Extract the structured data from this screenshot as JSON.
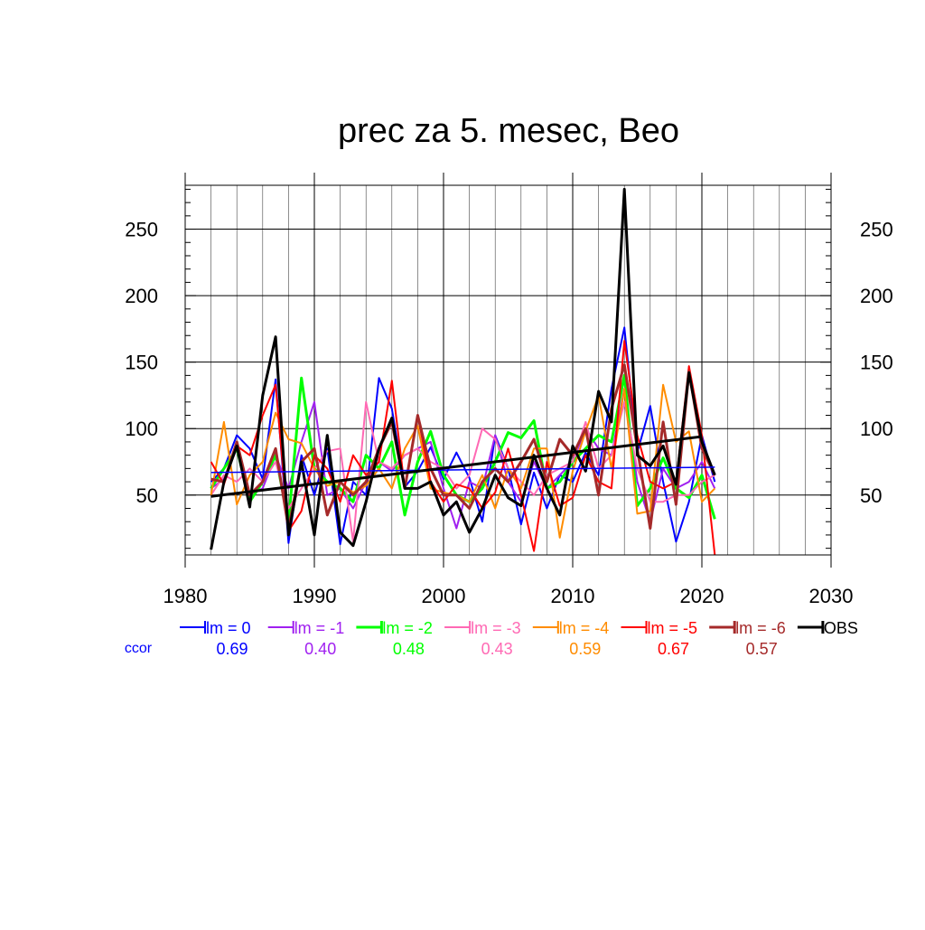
{
  "chart_data": {
    "type": "line",
    "title": "prec za 5. mesec, Beo",
    "xlabel": "",
    "ylabel": "",
    "xlim": [
      1980,
      2030
    ],
    "ylim": [
      5,
      283
    ],
    "x_ticks": [
      1980,
      1990,
      2000,
      2010,
      2020,
      2030
    ],
    "y_ticks": [
      50,
      100,
      150,
      200,
      250
    ],
    "x_tick_labels": [
      "1980",
      "1990",
      "2000",
      "2010",
      "2020",
      "2030"
    ],
    "y_tick_labels": [
      "50",
      "100",
      "150",
      "200",
      "250"
    ],
    "grid": true,
    "legend_position": "bottom",
    "ccor_label": "ccor",
    "x": [
      1982,
      1983,
      1984,
      1985,
      1986,
      1987,
      1988,
      1989,
      1990,
      1991,
      1992,
      1993,
      1994,
      1995,
      1996,
      1997,
      1998,
      1999,
      2000,
      2001,
      2002,
      2003,
      2004,
      2005,
      2006,
      2007,
      2008,
      2009,
      2010,
      2011,
      2012,
      2013,
      2014,
      2015,
      2016,
      2017,
      2018,
      2019,
      2020,
      2021
    ],
    "series": [
      {
        "name": "lm = 0",
        "ccor": "0.69",
        "color": "#0000ff",
        "width": 2,
        "values": [
          60,
          70,
          95,
          85,
          62,
          137,
          14,
          80,
          50,
          85,
          13,
          60,
          50,
          138,
          115,
          56,
          68,
          86,
          62,
          82,
          63,
          30,
          95,
          70,
          28,
          67,
          40,
          65,
          60,
          82,
          65,
          130,
          176,
          82,
          117,
          60,
          15,
          45,
          95,
          60
        ]
      },
      {
        "name": "lm = -1",
        "ccor": "0.40",
        "color": "#a020f0",
        "width": 2,
        "values": [
          55,
          62,
          85,
          50,
          55,
          80,
          55,
          90,
          120,
          50,
          55,
          40,
          60,
          75,
          68,
          80,
          85,
          90,
          55,
          25,
          60,
          55,
          95,
          60,
          45,
          75,
          55,
          65,
          75,
          100,
          85,
          80,
          130,
          60,
          30,
          70,
          55,
          60,
          75,
          55
        ]
      },
      {
        "name": "lm = -2",
        "ccor": "0.48",
        "color": "#00ff00",
        "width": 3,
        "values": [
          55,
          70,
          85,
          45,
          60,
          80,
          30,
          138,
          70,
          60,
          55,
          45,
          80,
          70,
          90,
          35,
          75,
          98,
          65,
          50,
          45,
          55,
          75,
          97,
          93,
          106,
          55,
          60,
          75,
          85,
          95,
          90,
          140,
          42,
          55,
          78,
          55,
          48,
          65,
          32
        ]
      },
      {
        "name": "lm = -3",
        "ccor": "0.43",
        "color": "#ff69b4",
        "width": 2,
        "values": [
          50,
          65,
          60,
          70,
          60,
          75,
          40,
          55,
          70,
          83,
          85,
          15,
          120,
          75,
          70,
          80,
          85,
          75,
          70,
          55,
          65,
          100,
          92,
          70,
          60,
          50,
          65,
          70,
          75,
          105,
          70,
          80,
          120,
          70,
          45,
          45,
          50,
          50,
          60,
          65
        ]
      },
      {
        "name": "lm = -4",
        "ccor": "0.59",
        "color": "#ff8c00",
        "width": 2,
        "values": [
          50,
          105,
          43,
          65,
          75,
          112,
          92,
          89,
          70,
          57,
          60,
          52,
          57,
          70,
          55,
          85,
          102,
          55,
          52,
          50,
          45,
          65,
          40,
          70,
          55,
          85,
          85,
          18,
          68,
          98,
          125,
          70,
          130,
          36,
          38,
          133,
          90,
          98,
          45,
          55
        ]
      },
      {
        "name": "lm = -5",
        "ccor": "0.67",
        "color": "#ff0000",
        "width": 2,
        "values": [
          75,
          58,
          87,
          80,
          110,
          133,
          23,
          38,
          80,
          70,
          45,
          80,
          65,
          75,
          136,
          55,
          110,
          60,
          45,
          58,
          55,
          40,
          52,
          85,
          50,
          8,
          75,
          42,
          48,
          80,
          60,
          55,
          166,
          95,
          60,
          55,
          60,
          147,
          95,
          5
        ]
      },
      {
        "name": "lm = -6",
        "ccor": "0.57",
        "color": "#a52a2a",
        "width": 3,
        "values": [
          62,
          60,
          90,
          50,
          60,
          85,
          25,
          75,
          85,
          35,
          60,
          50,
          60,
          85,
          105,
          55,
          110,
          70,
          50,
          50,
          40,
          60,
          70,
          60,
          75,
          92,
          60,
          92,
          80,
          100,
          50,
          115,
          148,
          85,
          25,
          105,
          43,
          143,
          85,
          65
        ]
      },
      {
        "name": "OBS",
        "ccor": "",
        "color": "#000000",
        "width": 3,
        "values": [
          9,
          60,
          87,
          41,
          125,
          169,
          20,
          75,
          20,
          95,
          22,
          12,
          45,
          85,
          108,
          55,
          55,
          60,
          35,
          45,
          22,
          40,
          65,
          48,
          42,
          80,
          55,
          35,
          87,
          68,
          128,
          105,
          280,
          80,
          72,
          87,
          58,
          142,
          90,
          65
        ]
      }
    ],
    "trend_lines": [
      {
        "name": "lm = 0 trend",
        "color": "#0000ff",
        "width": 1.5,
        "x": [
          1982,
          2021
        ],
        "y": [
          67,
          71
        ]
      },
      {
        "name": "OBS trend",
        "color": "#000000",
        "width": 3,
        "x": [
          1982,
          2020
        ],
        "y": [
          49,
          94
        ]
      }
    ]
  }
}
